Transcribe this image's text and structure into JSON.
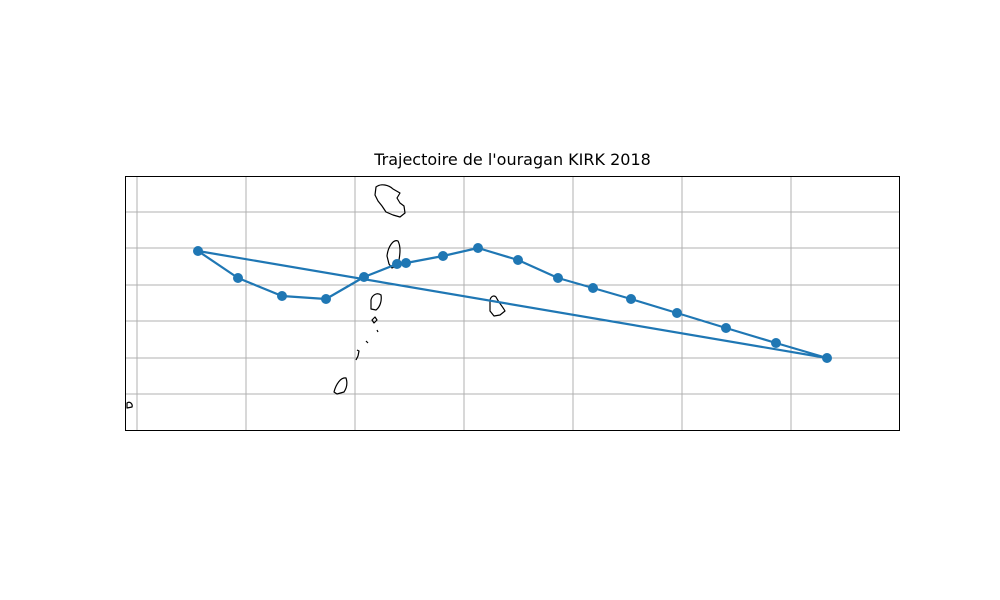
{
  "title": "Trajectoire de l'ouragan KIRK 2018",
  "colors": {
    "track": "#1f77b4",
    "grid": "#b0b0b0",
    "coast": "#000000",
    "frame": "#000000"
  },
  "map": {
    "gridlines": true,
    "track_points": [
      [
        -61.1,
        13.8
      ],
      [
        -59.0,
        13.8
      ],
      [
        -58.3,
        13.95
      ],
      [
        -57.4,
        14.1
      ],
      [
        -56.7,
        14.25
      ],
      [
        -56.05,
        14.4
      ],
      [
        -55.35,
        14.6
      ],
      [
        -54.7,
        14.8
      ],
      [
        -54.0,
        15.0
      ],
      [
        -53.3,
        15.2
      ],
      [
        -52.6,
        15.45
      ],
      [
        -51.9,
        15.7
      ],
      [
        -51.0,
        15.95
      ],
      [
        -50.2,
        16.2
      ],
      [
        -49.6,
        16.4
      ],
      [
        -48.55,
        16.6
      ],
      [
        -48.3,
        16.6
      ],
      [
        -47.6,
        16.45
      ],
      [
        -46.8,
        16.1
      ],
      [
        -46.0,
        16.15
      ],
      [
        -45.2,
        16.2
      ],
      [
        -44.4,
        16.45
      ],
      [
        -43.75,
        16.8
      ],
      [
        -45.6,
        15.45
      ],
      [
        -61.1,
        13.8
      ]
    ],
    "islands": [
      "Martinique",
      "Sainte-Lucie",
      "Saint-Vincent",
      "Grenadines",
      "Grenade",
      "Barbade",
      "Tobago",
      "Trinité"
    ]
  }
}
